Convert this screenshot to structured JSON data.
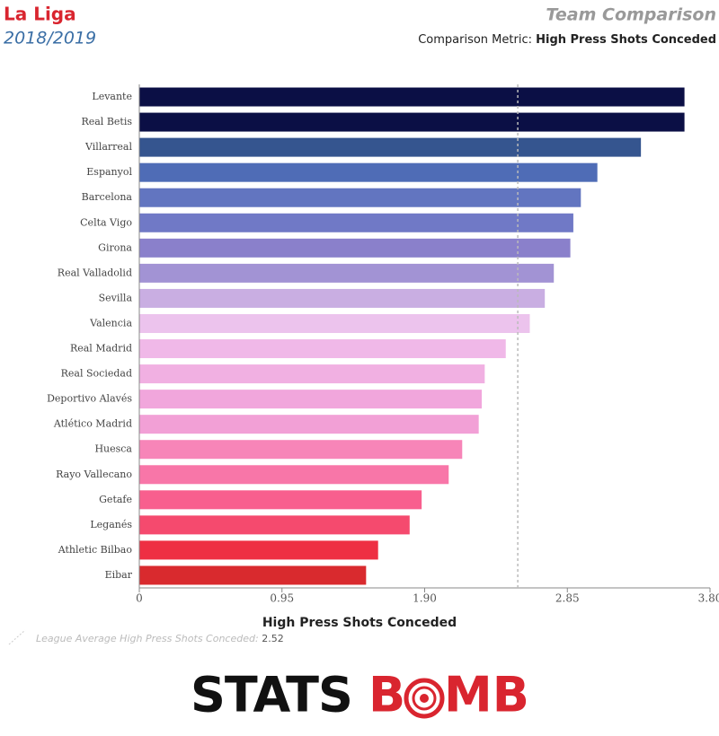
{
  "header": {
    "league": "La Liga",
    "season": "2018/2019",
    "title": "Team Comparison",
    "metric_label": "Comparison Metric:",
    "metric": "High Press Shots Conceded"
  },
  "chart_data": {
    "type": "hbar",
    "xlabel": "High Press Shots Conceded",
    "categories": [
      "Levante",
      "Real Betis",
      "Villarreal",
      "Espanyol",
      "Barcelona",
      "Celta Vigo",
      "Girona",
      "Real Valladolid",
      "Sevilla",
      "Valencia",
      "Real Madrid",
      "Real Sociedad",
      "Deportivo Alavés",
      "Atlético Madrid",
      "Huesca",
      "Rayo Vallecano",
      "Getafe",
      "Leganés",
      "Athletic Bilbao",
      "Eibar"
    ],
    "values": [
      3.63,
      3.63,
      3.34,
      3.05,
      2.94,
      2.89,
      2.87,
      2.76,
      2.7,
      2.6,
      2.44,
      2.3,
      2.28,
      2.26,
      2.15,
      2.06,
      1.88,
      1.8,
      1.59,
      1.51
    ],
    "colors": [
      "#0b0f45",
      "#0b0f45",
      "#35558f",
      "#4f6cb6",
      "#6275c0",
      "#7079c6",
      "#8a80cb",
      "#a293d4",
      "#c9aee2",
      "#ecc3ed",
      "#f0b8e8",
      "#f1b0e2",
      "#f1a6dc",
      "#f2a0d6",
      "#f785b8",
      "#f876a8",
      "#f85f8e",
      "#f54a6e",
      "#ee2f43",
      "#d92a2e"
    ],
    "xlim": [
      0,
      3.8
    ],
    "xticks": [
      0,
      0.95,
      {
        "value": 1.9,
        "label": "1.90"
      },
      2.85,
      {
        "value": 3.8,
        "label": "3.80"
      }
    ],
    "average": {
      "label": "League Average High Press Shots Conceded:",
      "value": 2.52
    }
  },
  "footer": {
    "brand_a": "STATS",
    "brand_b": "B",
    "brand_c": "MB"
  }
}
